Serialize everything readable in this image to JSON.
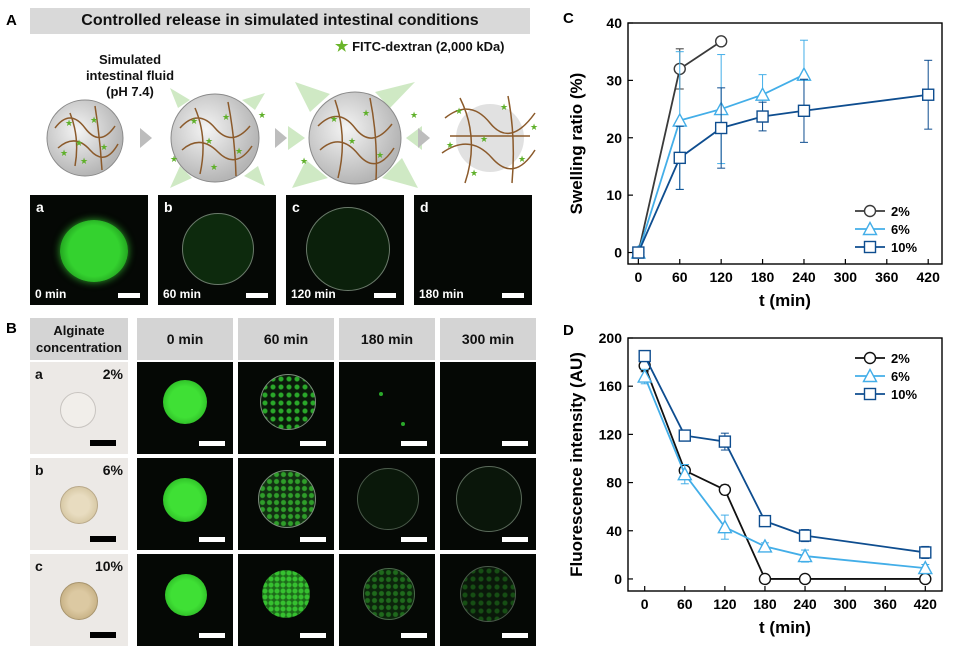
{
  "panel_a": {
    "label": "A",
    "banner": "Controlled release in simulated intestinal conditions",
    "legend": "FITC-dextran (2,000 kDa)",
    "fluid_lines": [
      "Simulated",
      "intestinal fluid",
      "(pH 7.4)"
    ],
    "images": [
      {
        "letter": "a",
        "time": "0 min"
      },
      {
        "letter": "b",
        "time": "60 min"
      },
      {
        "letter": "c",
        "time": "120 min"
      },
      {
        "letter": "d",
        "time": "180 min"
      }
    ]
  },
  "panel_b": {
    "label": "B",
    "header_lines": [
      "Alginate",
      "concentration"
    ],
    "time_headers": [
      "0 min",
      "60 min",
      "180 min",
      "300 min"
    ],
    "rows": [
      {
        "letter": "a",
        "conc": "2%"
      },
      {
        "letter": "b",
        "conc": "6%"
      },
      {
        "letter": "c",
        "conc": "10%"
      }
    ]
  },
  "chart_data": [
    {
      "panel": "C",
      "type": "line",
      "xlabel": "t (min)",
      "ylabel": "Swelling ratio (%)",
      "xlim": [
        -15,
        440
      ],
      "ylim": [
        -2,
        40
      ],
      "xticks": [
        0,
        60,
        120,
        180,
        240,
        300,
        360,
        420
      ],
      "yticks": [
        0,
        10,
        20,
        30,
        40
      ],
      "legend_position": "right-lower",
      "series": [
        {
          "name": "2%",
          "marker": "circle",
          "color": "#3a3a3a",
          "x": [
            0,
            60,
            120
          ],
          "y": [
            0,
            32,
            36.8
          ],
          "err": [
            0,
            3.5,
            0
          ]
        },
        {
          "name": "6%",
          "marker": "triangle",
          "color": "#43aee8",
          "x": [
            0,
            60,
            120,
            180,
            240
          ],
          "y": [
            0,
            23,
            25,
            27.5,
            31
          ],
          "err": [
            0,
            12,
            9.5,
            3.5,
            6
          ]
        },
        {
          "name": "10%",
          "marker": "square",
          "color": "#0e4d8f",
          "x": [
            0,
            60,
            120,
            180,
            240,
            420
          ],
          "y": [
            0,
            16.5,
            21.7,
            23.7,
            24.7,
            27.5
          ],
          "err": [
            0,
            5.5,
            7,
            2.5,
            5.5,
            6
          ]
        }
      ]
    },
    {
      "panel": "D",
      "type": "line",
      "xlabel": "t (min)",
      "ylabel": "Fluorescence intensity (AU)",
      "xlim": [
        -25,
        445
      ],
      "ylim": [
        -10,
        200
      ],
      "xticks": [
        0,
        60,
        120,
        180,
        240,
        300,
        360,
        420
      ],
      "yticks": [
        0,
        40,
        80,
        120,
        160,
        200
      ],
      "legend_position": "top-right",
      "series": [
        {
          "name": "2%",
          "marker": "circle",
          "color": "#111111",
          "x": [
            0,
            60,
            120,
            180,
            240,
            420
          ],
          "y": [
            177,
            90,
            74,
            0,
            0,
            0
          ],
          "err": [
            5,
            5,
            4,
            0,
            0,
            0
          ]
        },
        {
          "name": "6%",
          "marker": "triangle",
          "color": "#43aee8",
          "x": [
            0,
            60,
            120,
            180,
            240,
            420
          ],
          "y": [
            168,
            87,
            43,
            27,
            19,
            9
          ],
          "err": [
            6,
            8,
            10,
            3,
            5,
            3
          ]
        },
        {
          "name": "10%",
          "marker": "square",
          "color": "#0e4d8f",
          "x": [
            0,
            60,
            120,
            180,
            240,
            420
          ],
          "y": [
            185,
            119,
            114,
            48,
            36,
            22
          ],
          "err": [
            4,
            3,
            7,
            2,
            5,
            5
          ]
        }
      ]
    }
  ]
}
